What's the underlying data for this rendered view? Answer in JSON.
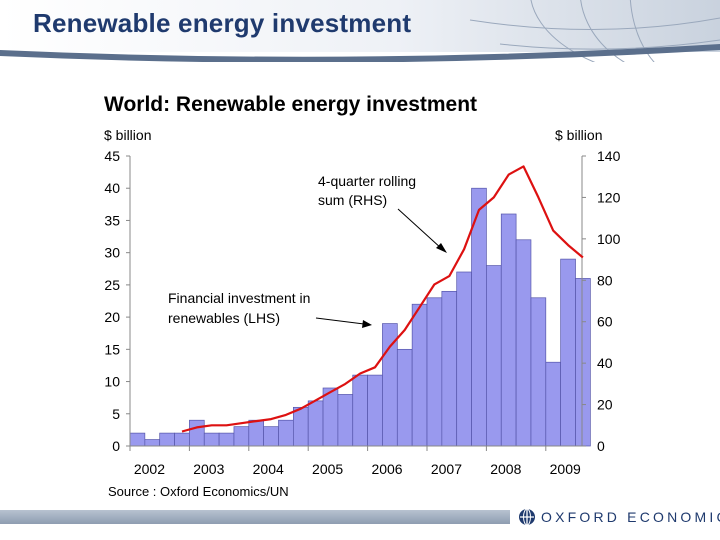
{
  "slide": {
    "title": "Renewable energy investment",
    "source": "Source : Oxford Economics/UN",
    "logo_text": "OXFORD ECONOMICS"
  },
  "chart_data": {
    "type": "bar",
    "title": "World: Renewable energy investment",
    "y_left_label": "$ billion",
    "y_right_label": "$ billion",
    "ylim_left": [
      0,
      45
    ],
    "ylim_right": [
      0,
      140
    ],
    "yticks_left": [
      0,
      5,
      10,
      15,
      20,
      25,
      30,
      35,
      40,
      45
    ],
    "yticks_right": [
      0,
      20,
      40,
      60,
      80,
      100,
      120,
      140
    ],
    "x_tick_labels": [
      "2002",
      "2003",
      "2004",
      "2005",
      "2006",
      "2007",
      "2008",
      "2009"
    ],
    "quarters": [
      "2002Q1",
      "2002Q2",
      "2002Q3",
      "2002Q4",
      "2003Q1",
      "2003Q2",
      "2003Q3",
      "2003Q4",
      "2004Q1",
      "2004Q2",
      "2004Q3",
      "2004Q4",
      "2005Q1",
      "2005Q2",
      "2005Q3",
      "2005Q4",
      "2006Q1",
      "2006Q2",
      "2006Q3",
      "2006Q4",
      "2007Q1",
      "2007Q2",
      "2007Q3",
      "2007Q4",
      "2008Q1",
      "2008Q2",
      "2008Q3",
      "2008Q4",
      "2009Q1",
      "2009Q2",
      "2009Q3",
      "2009Q4"
    ],
    "series": [
      {
        "name": "Financial investment in renewables (LHS)",
        "type": "bar",
        "axis": "left",
        "color": "#9999ee",
        "values": [
          2,
          1,
          2,
          2,
          4,
          2,
          2,
          3,
          4,
          3,
          4,
          6,
          7,
          9,
          8,
          11,
          11,
          19,
          15,
          22,
          23,
          24,
          27,
          40,
          28,
          36,
          32,
          23,
          13,
          29,
          26
        ]
      },
      {
        "name": "4-quarter rolling sum (RHS)",
        "type": "line",
        "axis": "right",
        "color": "#dd1111",
        "start_index": 3,
        "values": [
          7,
          9,
          10,
          10,
          11,
          12,
          13,
          15,
          18,
          22,
          26,
          30,
          35,
          38,
          48,
          56,
          67,
          78,
          82,
          95,
          114,
          120,
          131,
          135,
          120,
          104,
          97,
          91
        ]
      }
    ],
    "annotations": [
      {
        "text_lines": [
          "4-quarter rolling",
          "sum (RHS)"
        ],
        "series": "4-quarter rolling sum (RHS)"
      },
      {
        "text_lines": [
          "Financial investment in",
          "renewables (LHS)"
        ],
        "series": "Financial investment in renewables (LHS)"
      }
    ],
    "grid": false,
    "legend": "none"
  }
}
